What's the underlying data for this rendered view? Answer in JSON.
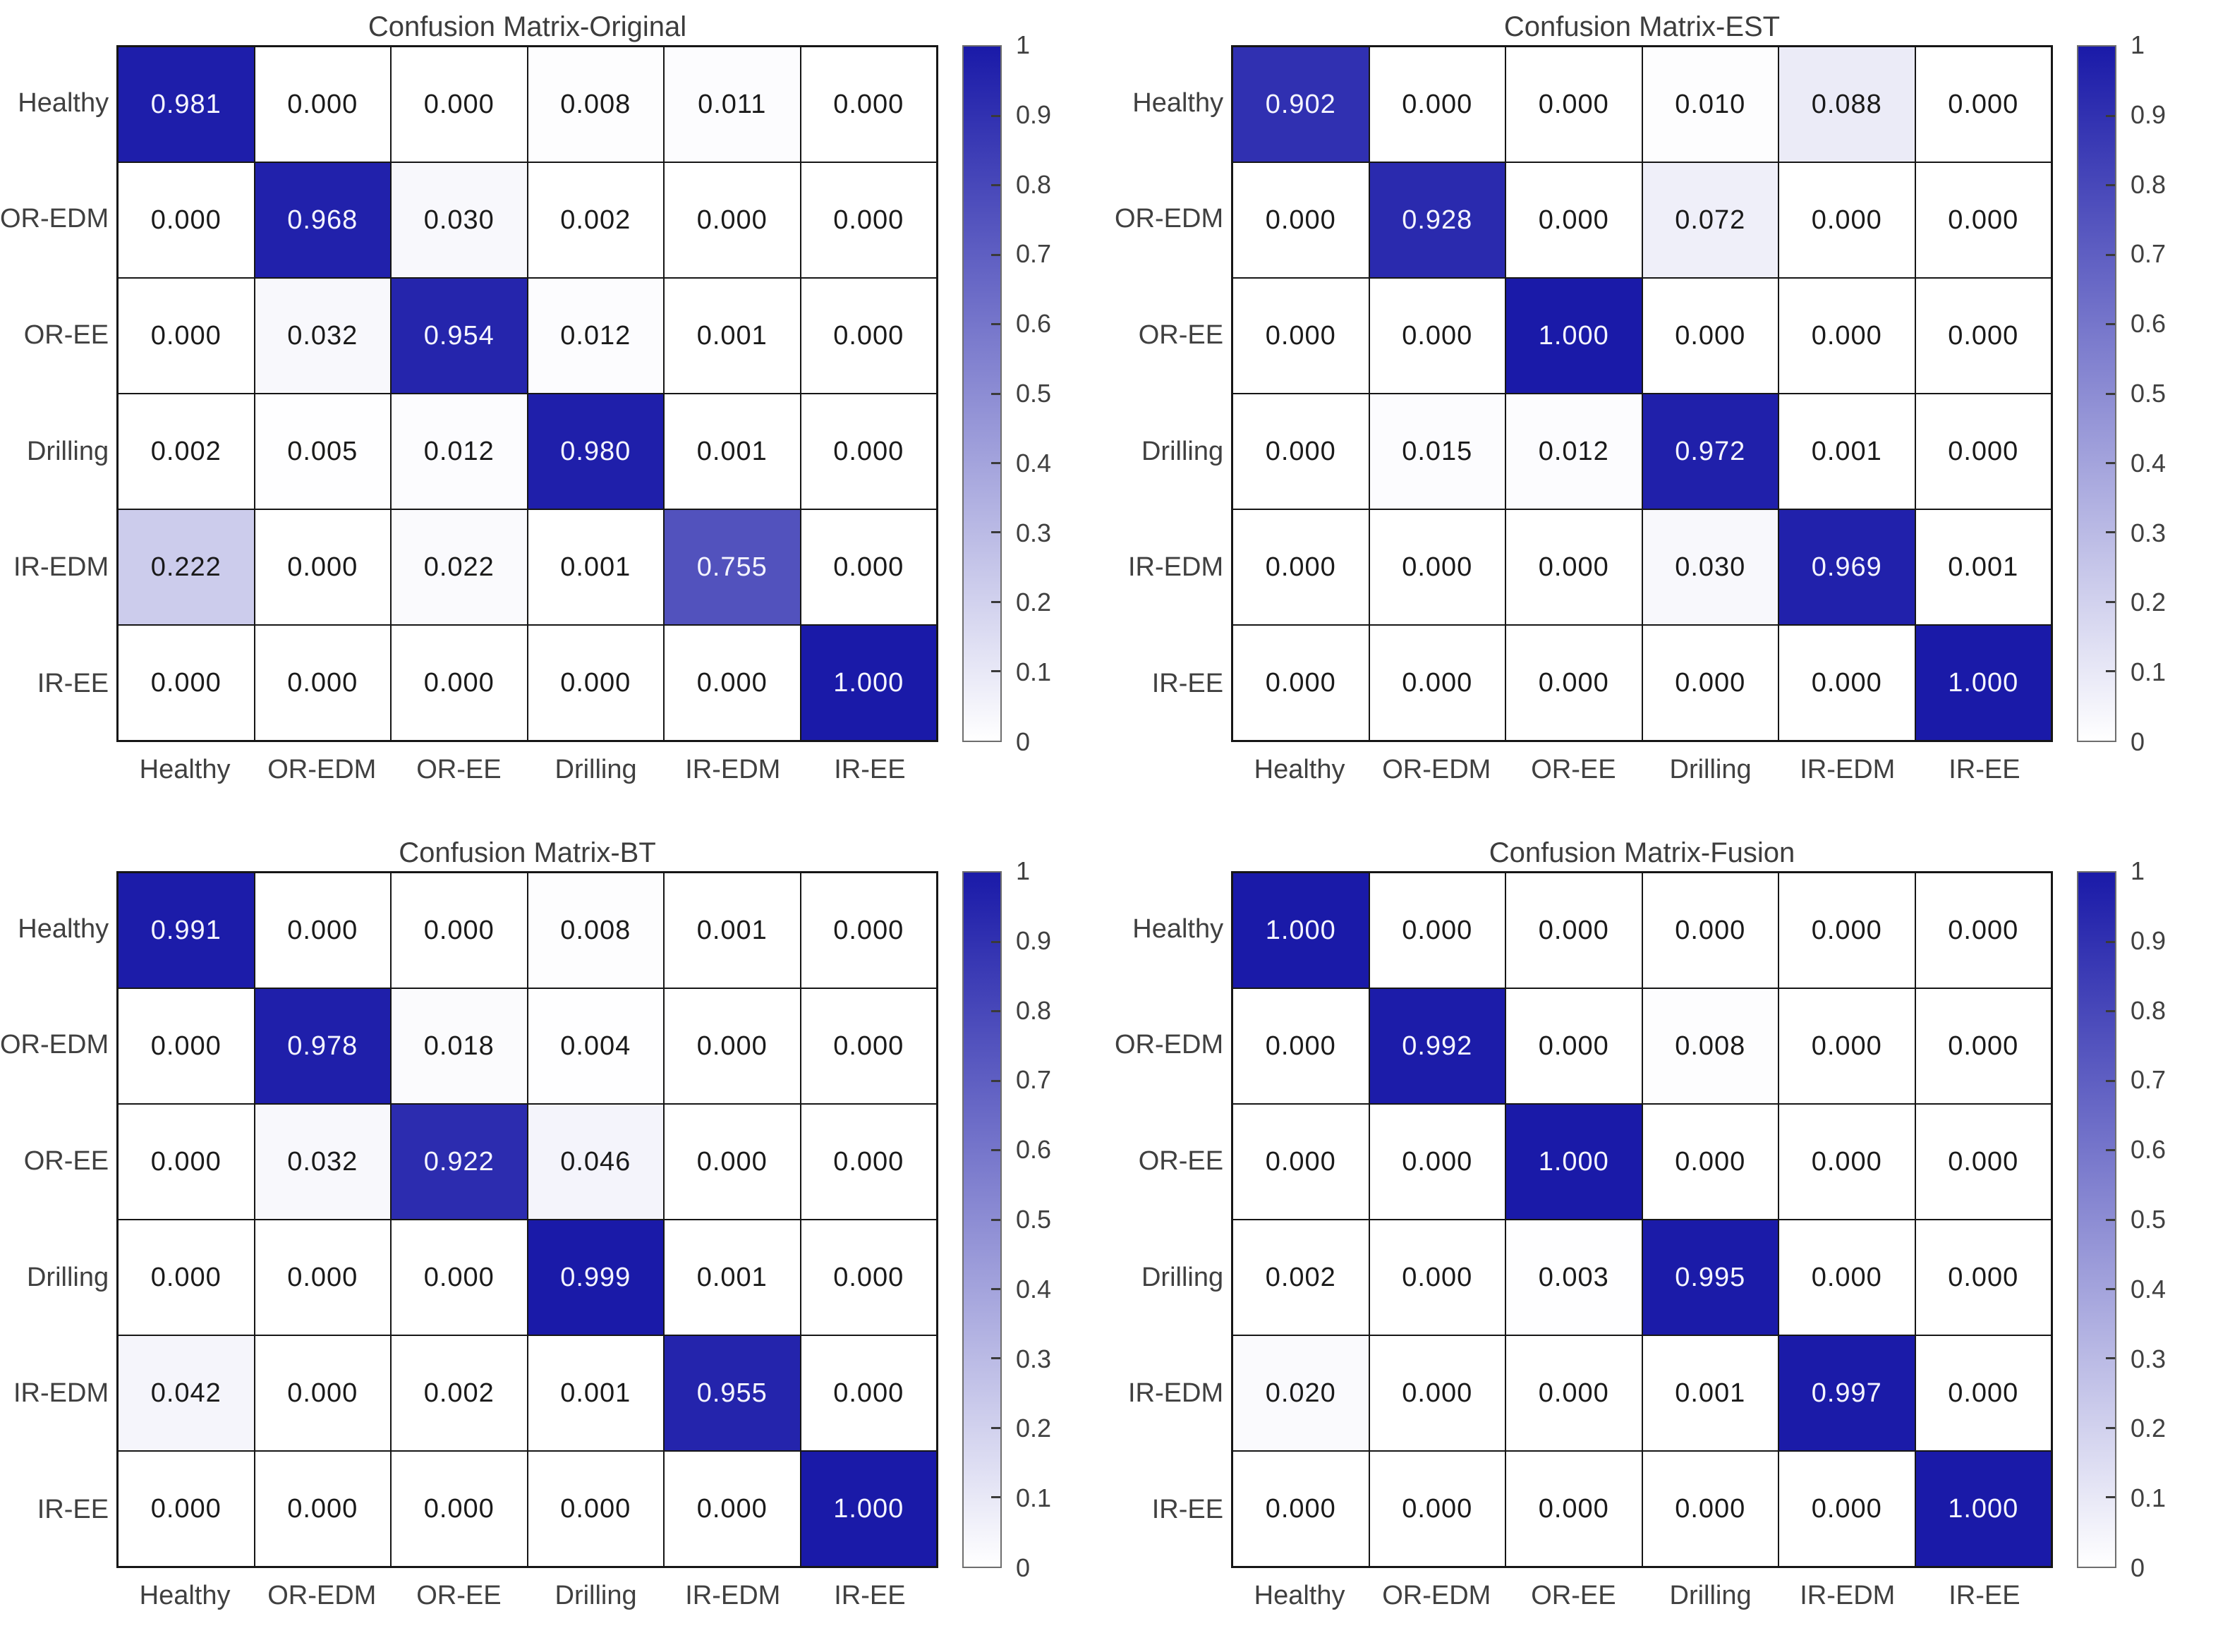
{
  "figure": {
    "class_labels": [
      "Healthy",
      "OR-EDM",
      "OR-EE",
      "Drilling",
      "IR-EDM",
      "IR-EE"
    ],
    "colorbar": {
      "ticks": [
        "1",
        "0.9",
        "0.8",
        "0.7",
        "0.6",
        "0.5",
        "0.4",
        "0.3",
        "0.2",
        "0.1",
        "0"
      ],
      "min_color": "#ffffff",
      "max_color": "#1a1aa8"
    },
    "cell_text_dark": "#1a1a1a",
    "cell_text_light": "#f5f5ff"
  },
  "chart_data": [
    {
      "type": "heatmap",
      "id": "original",
      "title": "Confusion Matrix-Original",
      "x_categories": [
        "Healthy",
        "OR-EDM",
        "OR-EE",
        "Drilling",
        "IR-EDM",
        "IR-EE"
      ],
      "y_categories": [
        "Healthy",
        "OR-EDM",
        "OR-EE",
        "Drilling",
        "IR-EDM",
        "IR-EE"
      ],
      "value_range": [
        0,
        1
      ],
      "values": [
        [
          0.981,
          0.0,
          0.0,
          0.008,
          0.011,
          0.0
        ],
        [
          0.0,
          0.968,
          0.03,
          0.002,
          0.0,
          0.0
        ],
        [
          0.0,
          0.032,
          0.954,
          0.012,
          0.001,
          0.0
        ],
        [
          0.002,
          0.005,
          0.012,
          0.98,
          0.001,
          0.0
        ],
        [
          0.222,
          0.0,
          0.022,
          0.001,
          0.755,
          0.0
        ],
        [
          0.0,
          0.0,
          0.0,
          0.0,
          0.0,
          1.0
        ]
      ]
    },
    {
      "type": "heatmap",
      "id": "est",
      "title": "Confusion Matrix-EST",
      "x_categories": [
        "Healthy",
        "OR-EDM",
        "OR-EE",
        "Drilling",
        "IR-EDM",
        "IR-EE"
      ],
      "y_categories": [
        "Healthy",
        "OR-EDM",
        "OR-EE",
        "Drilling",
        "IR-EDM",
        "IR-EE"
      ],
      "value_range": [
        0,
        1
      ],
      "values": [
        [
          0.902,
          0.0,
          0.0,
          0.01,
          0.088,
          0.0
        ],
        [
          0.0,
          0.928,
          0.0,
          0.072,
          0.0,
          0.0
        ],
        [
          0.0,
          0.0,
          1.0,
          0.0,
          0.0,
          0.0
        ],
        [
          0.0,
          0.015,
          0.012,
          0.972,
          0.001,
          0.0
        ],
        [
          0.0,
          0.0,
          0.0,
          0.03,
          0.969,
          0.001
        ],
        [
          0.0,
          0.0,
          0.0,
          0.0,
          0.0,
          1.0
        ]
      ]
    },
    {
      "type": "heatmap",
      "id": "bt",
      "title": "Confusion Matrix-BT",
      "x_categories": [
        "Healthy",
        "OR-EDM",
        "OR-EE",
        "Drilling",
        "IR-EDM",
        "IR-EE"
      ],
      "y_categories": [
        "Healthy",
        "OR-EDM",
        "OR-EE",
        "Drilling",
        "IR-EDM",
        "IR-EE"
      ],
      "value_range": [
        0,
        1
      ],
      "values": [
        [
          0.991,
          0.0,
          0.0,
          0.008,
          0.001,
          0.0
        ],
        [
          0.0,
          0.978,
          0.018,
          0.004,
          0.0,
          0.0
        ],
        [
          0.0,
          0.032,
          0.922,
          0.046,
          0.0,
          0.0
        ],
        [
          0.0,
          0.0,
          0.0,
          0.999,
          0.001,
          0.0
        ],
        [
          0.042,
          0.0,
          0.002,
          0.001,
          0.955,
          0.0
        ],
        [
          0.0,
          0.0,
          0.0,
          0.0,
          0.0,
          1.0
        ]
      ]
    },
    {
      "type": "heatmap",
      "id": "fusion",
      "title": "Confusion Matrix-Fusion",
      "x_categories": [
        "Healthy",
        "OR-EDM",
        "OR-EE",
        "Drilling",
        "IR-EDM",
        "IR-EE"
      ],
      "y_categories": [
        "Healthy",
        "OR-EDM",
        "OR-EE",
        "Drilling",
        "IR-EDM",
        "IR-EE"
      ],
      "value_range": [
        0,
        1
      ],
      "values": [
        [
          1.0,
          0.0,
          0.0,
          0.0,
          0.0,
          0.0
        ],
        [
          0.0,
          0.992,
          0.0,
          0.008,
          0.0,
          0.0
        ],
        [
          0.0,
          0.0,
          1.0,
          0.0,
          0.0,
          0.0
        ],
        [
          0.002,
          0.0,
          0.003,
          0.995,
          0.0,
          0.0
        ],
        [
          0.02,
          0.0,
          0.0,
          0.001,
          0.997,
          0.0
        ],
        [
          0.0,
          0.0,
          0.0,
          0.0,
          0.0,
          1.0
        ]
      ]
    }
  ]
}
